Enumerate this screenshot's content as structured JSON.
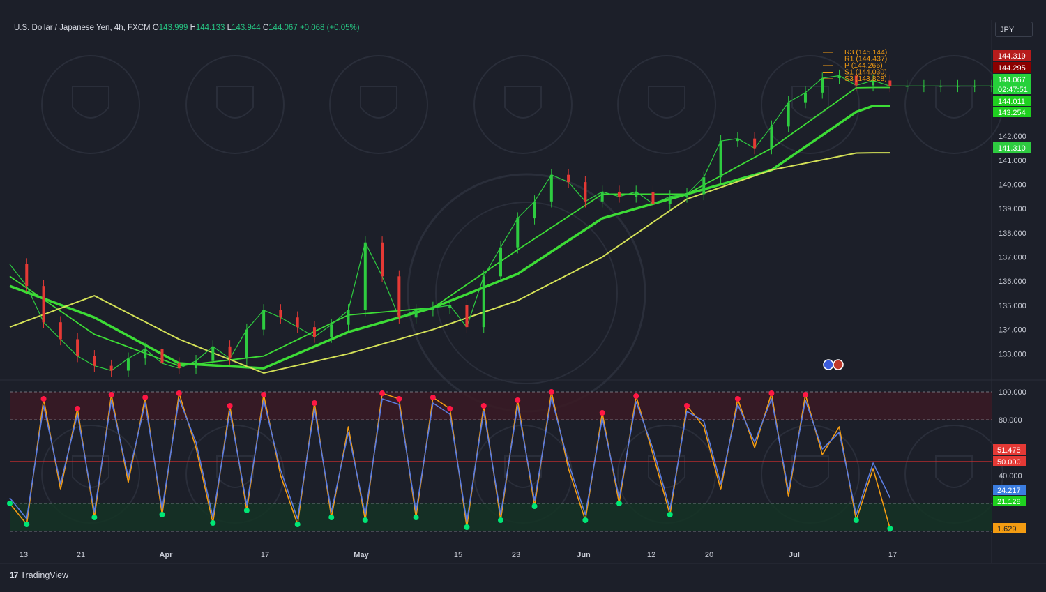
{
  "symbol": {
    "name": "U.S. Dollar / Japanese Yen",
    "interval": "4h",
    "exchange": "FXCM",
    "o_label": "O",
    "open": "143.999",
    "h_label": "H",
    "high": "144.133",
    "l_label": "L",
    "low": "143.944",
    "c_label": "C",
    "close": "144.067",
    "change": "+0.068 (+0.05%)"
  },
  "currency": "JPY",
  "brand": "TradingView",
  "chart_data": [
    {
      "type": "line",
      "panel": "price",
      "ylim": [
        132.2,
        145.9
      ],
      "y_ticks": [
        "133.000",
        "134.000",
        "135.000",
        "136.000",
        "137.000",
        "138.000",
        "139.000",
        "140.000",
        "141.000",
        "142.000"
      ],
      "x_ticks": [
        "13",
        "21",
        "Apr",
        "17",
        "May",
        "15",
        "23",
        "Jun",
        "12",
        "20",
        "Jul",
        "17"
      ],
      "price_tags": [
        {
          "value": "144.319",
          "color": "#b71c1c"
        },
        {
          "value": "144.295",
          "color": "#8b0000"
        },
        {
          "value": "144.067",
          "color": "#26d13a"
        },
        {
          "value": "02:47:51",
          "color": "#26d13a"
        },
        {
          "value": "144.011",
          "color": "#1fd11f"
        },
        {
          "value": "143.254",
          "color": "#1fd11f"
        },
        {
          "value": "141.310",
          "color": "#2ecc40"
        }
      ],
      "pivot_labels": [
        "R3 (145.144)",
        "R1 (144.437)",
        "P (144.266)",
        "S1 (144.030)",
        "S3 (143.828)"
      ],
      "series": [
        {
          "role": "close",
          "color": "#2ecc40",
          "x": [
            0,
            2,
            4,
            6,
            8,
            10,
            12,
            14,
            16,
            18,
            20,
            22,
            24,
            26,
            28,
            30,
            32,
            34,
            36,
            38,
            40,
            42,
            44,
            46,
            48,
            50,
            52,
            54,
            56,
            58,
            60,
            62,
            64,
            66,
            68,
            70,
            72,
            74,
            76,
            78,
            80,
            82,
            84,
            86,
            88,
            90,
            92,
            94,
            96,
            98,
            100,
            102,
            104,
            106,
            108,
            110,
            112,
            114,
            116
          ],
          "y": [
            136.7,
            135.8,
            134.3,
            133.6,
            132.9,
            132.5,
            132.3,
            132.8,
            133.2,
            132.6,
            132.4,
            132.7,
            133.3,
            132.8,
            134.0,
            134.8,
            134.5,
            134.1,
            133.7,
            134.2,
            134.8,
            137.6,
            136.2,
            134.5,
            134.8,
            134.9,
            135.0,
            134.1,
            136.2,
            137.4,
            138.6,
            139.3,
            140.4,
            140.1,
            139.3,
            139.7,
            139.5,
            139.7,
            139.2,
            139.5,
            139.6,
            140.3,
            141.8,
            141.9,
            141.5,
            142.4,
            143.4,
            143.8,
            144.4,
            144.5,
            144.1,
            144.3,
            144.07,
            144.07,
            144.07,
            144.07,
            144.07,
            144.07,
            144.07
          ]
        },
        {
          "role": "moving-average-long",
          "color": "#d4e157",
          "x": [
            0,
            10,
            20,
            30,
            40,
            50,
            60,
            70,
            80,
            90,
            100,
            102,
            104
          ],
          "y": [
            134.1,
            135.4,
            133.6,
            132.2,
            133.0,
            134.0,
            135.2,
            137.0,
            139.4,
            140.6,
            141.3,
            141.31,
            141.31
          ]
        },
        {
          "role": "moving-average-mid",
          "color": "#3ddc36",
          "x": [
            0,
            10,
            20,
            30,
            40,
            50,
            60,
            70,
            80,
            90,
            100,
            102,
            104
          ],
          "y": [
            135.8,
            134.5,
            132.6,
            132.4,
            133.9,
            134.9,
            136.3,
            138.6,
            139.6,
            140.6,
            143.0,
            143.25,
            143.25
          ]
        },
        {
          "role": "moving-average-short",
          "color": "#3ddc36",
          "x": [
            0,
            10,
            20,
            30,
            40,
            50,
            60,
            70,
            80,
            90,
            100,
            102,
            104
          ],
          "y": [
            136.2,
            133.8,
            132.5,
            132.9,
            134.6,
            134.9,
            137.3,
            139.6,
            139.6,
            141.5,
            144.0,
            144.01,
            144.01
          ]
        }
      ]
    },
    {
      "type": "line",
      "panel": "oscillator",
      "ylim": [
        0,
        100
      ],
      "y_ticks": [
        "100.000",
        "80.000",
        "40.000"
      ],
      "levels": [
        100,
        80,
        50,
        20,
        0
      ],
      "value_tags": [
        {
          "value": "51.478",
          "color": "#e53935"
        },
        {
          "value": "50.000",
          "color": "#e53935"
        },
        {
          "value": "24.217",
          "color": "#3b7de0"
        },
        {
          "value": "21.128",
          "color": "#1fd11f"
        },
        {
          "value": "1.629",
          "color": "#f39c12"
        }
      ],
      "series": [
        {
          "role": "k-line",
          "color": "#f39c12",
          "x": [
            0,
            2,
            4,
            6,
            8,
            10,
            12,
            14,
            16,
            18,
            20,
            22,
            24,
            26,
            28,
            30,
            32,
            34,
            36,
            38,
            40,
            42,
            44,
            46,
            48,
            50,
            52,
            54,
            56,
            58,
            60,
            62,
            64,
            66,
            68,
            70,
            72,
            74,
            76,
            78,
            80,
            82,
            84,
            86,
            88,
            90,
            92,
            94,
            96,
            98,
            100,
            102,
            104
          ],
          "y": [
            20,
            5,
            95,
            30,
            88,
            10,
            98,
            35,
            96,
            12,
            99,
            60,
            6,
            90,
            15,
            98,
            40,
            5,
            92,
            10,
            75,
            8,
            99,
            95,
            10,
            96,
            88,
            3,
            90,
            8,
            94,
            18,
            100,
            45,
            8,
            85,
            20,
            97,
            55,
            12,
            90,
            75,
            30,
            95,
            60,
            99,
            25,
            98,
            55,
            75,
            8,
            45,
            2
          ]
        },
        {
          "role": "d-line",
          "color": "#5b7ce0",
          "x": [
            0,
            2,
            4,
            6,
            8,
            10,
            12,
            14,
            16,
            18,
            20,
            22,
            24,
            26,
            28,
            30,
            32,
            34,
            36,
            38,
            40,
            42,
            44,
            46,
            48,
            50,
            52,
            54,
            56,
            58,
            60,
            62,
            64,
            66,
            68,
            70,
            72,
            74,
            76,
            78,
            80,
            82,
            84,
            86,
            88,
            90,
            92,
            94,
            96,
            98,
            100,
            102,
            104
          ],
          "y": [
            24,
            9,
            90,
            34,
            84,
            14,
            94,
            39,
            92,
            16,
            95,
            64,
            10,
            86,
            19,
            94,
            44,
            9,
            88,
            14,
            71,
            12,
            95,
            91,
            14,
            92,
            84,
            7,
            86,
            12,
            90,
            22,
            96,
            49,
            12,
            81,
            24,
            93,
            59,
            16,
            86,
            79,
            34,
            91,
            64,
            95,
            29,
            94,
            59,
            71,
            12,
            49,
            24
          ]
        }
      ]
    }
  ]
}
